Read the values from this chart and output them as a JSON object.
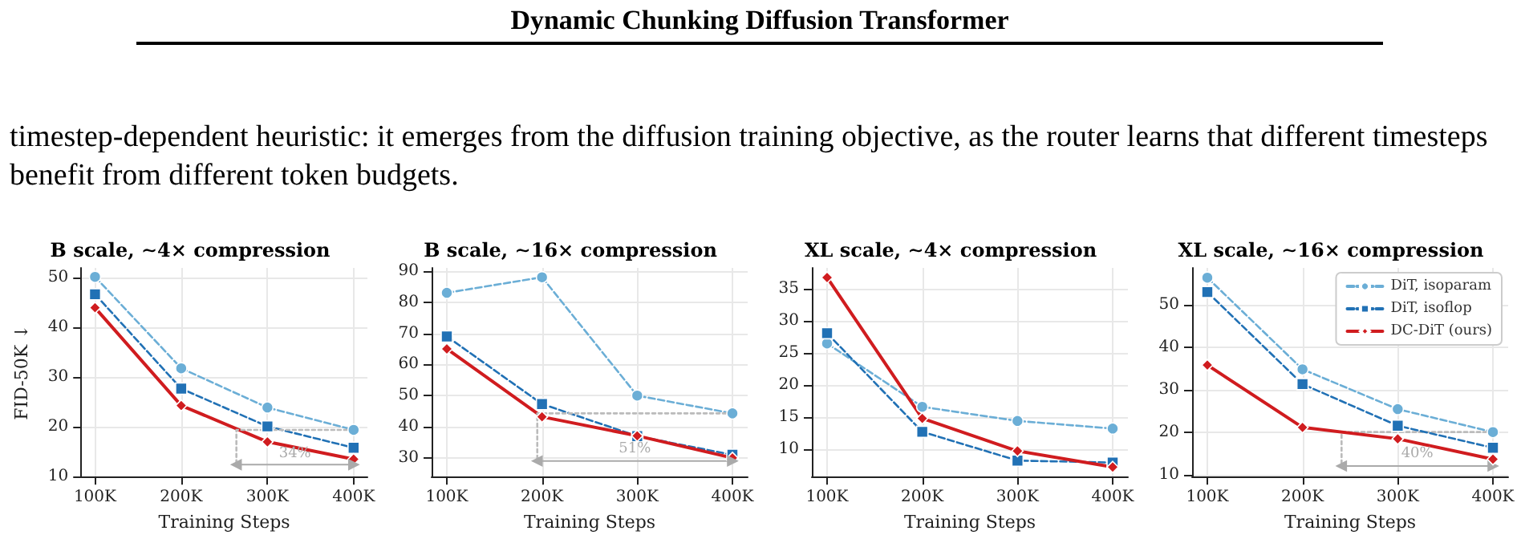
{
  "chart_data": [
    {
      "type": "line",
      "title": "B scale, ∼4× compression",
      "xlabel": "Training Steps",
      "ylabel": "FID-50K ↓",
      "annotations": [
        "Dynamic Chunking Diffusion Transformer",
        "timestep-dependent heuristic: it emerges from the diffusion training objective, as the router learns that different timesteps benefit from different token budgets.",
        {
          "text": "34%",
          "x": 332000,
          "y": 12.4
        }
      ],
      "x": [
        100000,
        200000,
        300000,
        400000
      ],
      "series": [
        {
          "color": "#6baed6",
          "marker": "circle",
          "line_style": "dashed",
          "values": [
            50.2,
            31.8,
            23.9,
            19.4
          ]
        },
        {
          "color": "#2171b5",
          "marker": "square",
          "line_style": "dashed",
          "values": [
            46.7,
            27.7,
            20.1,
            15.8
          ]
        },
        {
          "color": "#d01c1f",
          "marker": "diamond",
          "line_style": "solid",
          "values": [
            44.0,
            24.3,
            17.0,
            13.5
          ]
        },
        {
          "color": "#bbbbbb",
          "marker": "none",
          "line_style": "dotted",
          "x": [
            400000,
            264000,
            264000
          ],
          "values": [
            19.4,
            19.4,
            12.4
          ]
        },
        {
          "color": "#aaaaaa",
          "marker": "triangle",
          "line_style": "solid",
          "x": [
            264000,
            400000
          ],
          "values": [
            12.4,
            12.4
          ]
        }
      ],
      "xlim": [
        84000,
        416000
      ],
      "xticks": [
        {
          "value": 100000,
          "label": "100K"
        },
        {
          "value": 200000,
          "label": "200K"
        },
        {
          "value": 300000,
          "label": "300K"
        },
        {
          "value": 400000,
          "label": "400K"
        }
      ],
      "ylim": [
        10,
        52
      ],
      "yticks": [
        10,
        20,
        30,
        40,
        50
      ],
      "grid": true,
      "legend": false
    },
    {
      "type": "line",
      "title": "B scale, ∼16× compression",
      "xlabel": "Training Steps",
      "annotations": [
        {
          "text": "51%",
          "x": 297500,
          "y": 29
        }
      ],
      "x": [
        100000,
        200000,
        300000,
        400000
      ],
      "series": [
        {
          "color": "#6baed6",
          "marker": "circle",
          "line_style": "dashed",
          "values": [
            83,
            88,
            50,
            44.3
          ]
        },
        {
          "color": "#2171b5",
          "marker": "square",
          "line_style": "dashed",
          "values": [
            69,
            47.3,
            37,
            31
          ]
        },
        {
          "color": "#d01c1f",
          "marker": "diamond",
          "line_style": "solid",
          "values": [
            65,
            43.2,
            37.1,
            30
          ]
        },
        {
          "color": "#bbbbbb",
          "marker": "none",
          "line_style": "dotted",
          "x": [
            400000,
            195000,
            195000
          ],
          "values": [
            44.3,
            44.3,
            29
          ]
        },
        {
          "color": "#aaaaaa",
          "marker": "triangle",
          "line_style": "solid",
          "x": [
            195000,
            400000
          ],
          "values": [
            29,
            29
          ]
        }
      ],
      "xlim": [
        84000,
        416000
      ],
      "xticks": [
        {
          "value": 100000,
          "label": "100K"
        },
        {
          "value": 200000,
          "label": "200K"
        },
        {
          "value": 300000,
          "label": "300K"
        },
        {
          "value": 400000,
          "label": "400K"
        }
      ],
      "ylim": [
        24,
        91
      ],
      "yticks": [
        30,
        40,
        50,
        60,
        70,
        80,
        90
      ],
      "grid": true,
      "legend": false
    },
    {
      "type": "line",
      "title": "XL scale, ∼4× compression",
      "xlabel": "Training Steps",
      "x": [
        100000,
        200000,
        300000,
        400000
      ],
      "series": [
        {
          "color": "#6baed6",
          "marker": "circle",
          "line_style": "dashed",
          "values": [
            26.5,
            16.6,
            14.4,
            13.2
          ]
        },
        {
          "color": "#2171b5",
          "marker": "square",
          "line_style": "dashed",
          "values": [
            28.1,
            12.7,
            8.2,
            7.9
          ]
        },
        {
          "color": "#d01c1f",
          "marker": "diamond",
          "line_style": "solid",
          "values": [
            36.8,
            14.8,
            9.7,
            7.2
          ]
        }
      ],
      "xlim": [
        84000,
        416000
      ],
      "xticks": [
        {
          "value": 100000,
          "label": "100K"
        },
        {
          "value": 200000,
          "label": "200K"
        },
        {
          "value": 300000,
          "label": "300K"
        },
        {
          "value": 400000,
          "label": "400K"
        }
      ],
      "ylim": [
        5.7,
        38.3
      ],
      "yticks": [
        10,
        15,
        20,
        25,
        30,
        35
      ],
      "grid": true,
      "legend": false
    },
    {
      "type": "line",
      "title": "XL scale, ∼16× compression",
      "xlabel": "Training Steps",
      "annotations": [
        {
          "text": "40%",
          "x": 320500,
          "y": 12
        }
      ],
      "x": [
        100000,
        200000,
        300000,
        400000
      ],
      "series": [
        {
          "name": "DiT, isoparam",
          "color": "#6baed6",
          "marker": "circle",
          "line_style": "dashed",
          "values": [
            56.4,
            34.8,
            25.4,
            20.0
          ]
        },
        {
          "name": "DiT, isoflop",
          "color": "#2171b5",
          "marker": "square",
          "line_style": "dashed",
          "values": [
            53,
            31.3,
            21.5,
            16.3
          ]
        },
        {
          "name": "DC-DiT (ours)",
          "color": "#d01c1f",
          "marker": "diamond",
          "line_style": "solid",
          "values": [
            35.8,
            21.1,
            18.4,
            13.6
          ]
        },
        {
          "color": "#bbbbbb",
          "marker": "none",
          "line_style": "dotted",
          "x": [
            400000,
            241000,
            241000
          ],
          "values": [
            20.0,
            20.0,
            12
          ]
        },
        {
          "color": "#aaaaaa",
          "marker": "triangle",
          "line_style": "solid",
          "x": [
            241000,
            400000
          ],
          "values": [
            12,
            12
          ]
        }
      ],
      "xlim": [
        84000,
        416000
      ],
      "xticks": [
        {
          "value": 100000,
          "label": "100K"
        },
        {
          "value": 200000,
          "label": "200K"
        },
        {
          "value": 300000,
          "label": "300K"
        },
        {
          "value": 400000,
          "label": "400K"
        }
      ],
      "ylim": [
        9.5,
        58.7
      ],
      "yticks": [
        10,
        20,
        30,
        40,
        50
      ],
      "grid": true,
      "legend": "top right"
    }
  ]
}
